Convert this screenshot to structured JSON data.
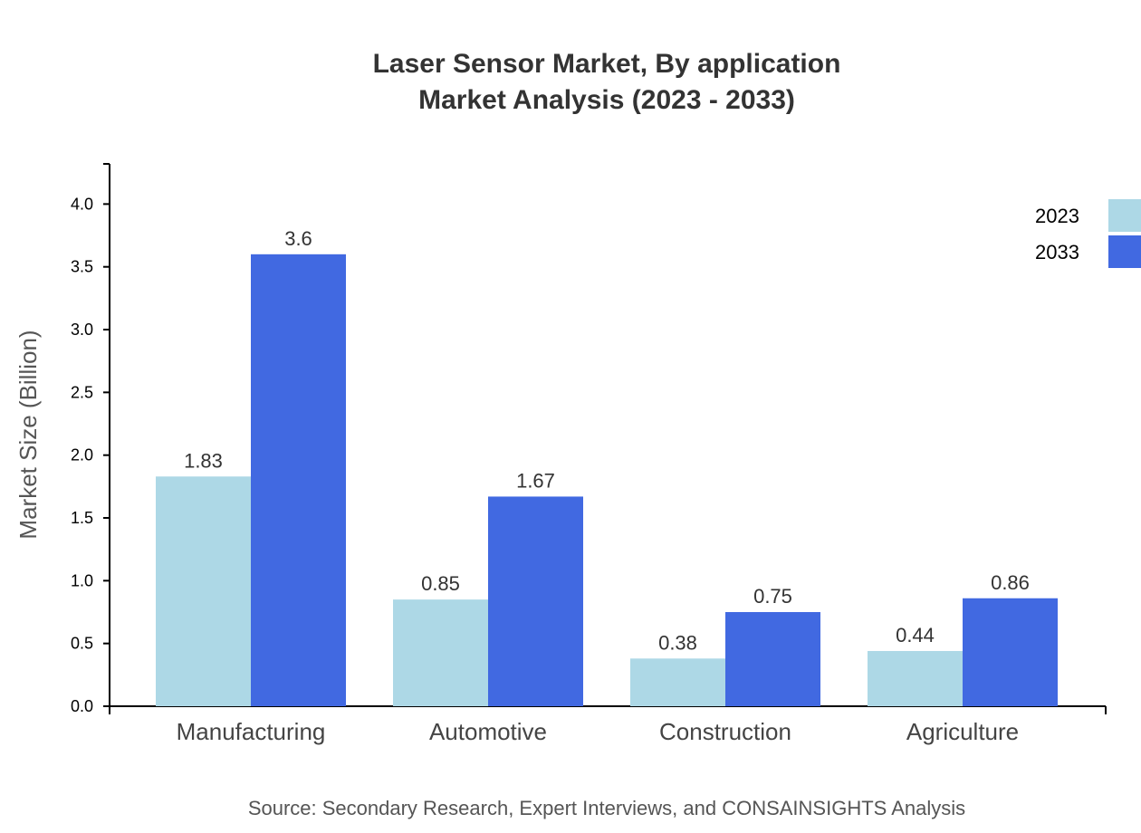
{
  "chart_data": {
    "type": "bar",
    "title": "Laser Sensor Market, By application",
    "subtitle": "Market Analysis (2023 - 2033)",
    "xlabel": "",
    "ylabel": "Market Size (Billion)",
    "ylim": [
      0,
      4.32
    ],
    "yticks": [
      "0.0",
      "0.5",
      "1.0",
      "1.5",
      "2.0",
      "2.5",
      "3.0",
      "3.5",
      "4.0"
    ],
    "grid": false,
    "legend_position": "top-right",
    "categories": [
      "Manufacturing",
      "Automotive",
      "Construction",
      "Agriculture"
    ],
    "series": [
      {
        "name": "2023",
        "color": "#ADD8E6",
        "values": [
          1.83,
          0.85,
          0.38,
          0.44
        ],
        "labels": [
          "1.83",
          "0.85",
          "0.38",
          "0.44"
        ]
      },
      {
        "name": "2033",
        "color": "#4169E1",
        "values": [
          3.6,
          1.67,
          0.75,
          0.86
        ],
        "labels": [
          "3.6",
          "1.67",
          "0.75",
          "0.86"
        ]
      }
    ],
    "source": "Source: Secondary Research, Expert Interviews, and CONSAINSIGHTS Analysis"
  }
}
